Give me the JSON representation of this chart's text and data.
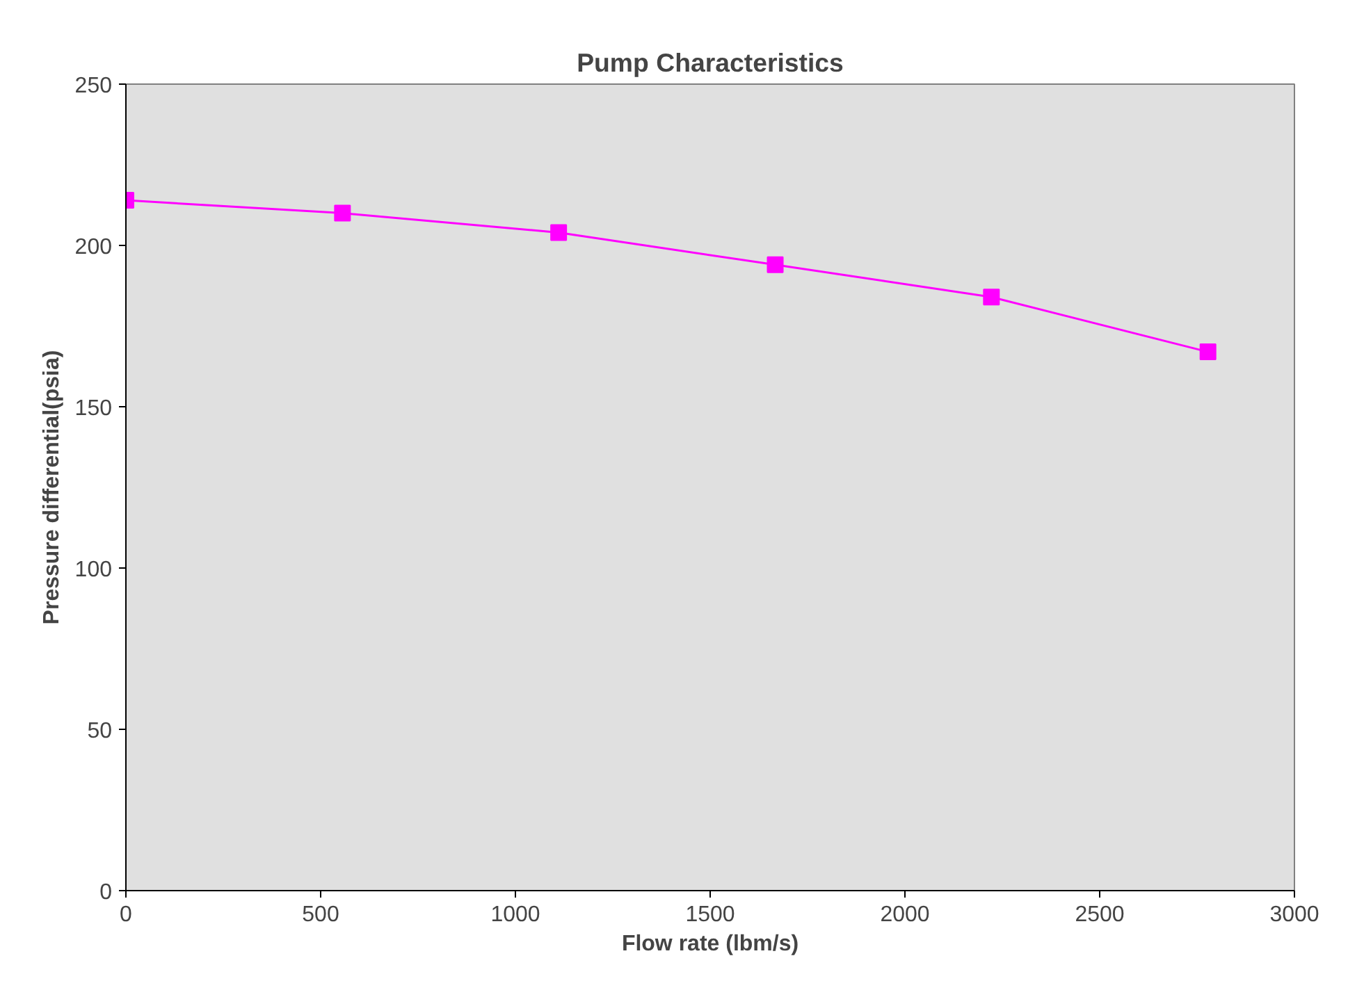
{
  "chart_data": {
    "type": "line",
    "title": "Pump Characteristics",
    "xlabel": "Flow rate (lbm/s)",
    "ylabel": "Pressure differential(psia)",
    "x": [
      0,
      556,
      1111,
      1667,
      2222,
      2778
    ],
    "series": [
      {
        "color": "#ff00ff",
        "values": [
          214,
          210,
          204,
          194,
          184,
          167
        ]
      }
    ],
    "xlim": [
      0,
      3000
    ],
    "ylim": [
      0,
      250
    ],
    "xticks": [
      0,
      500,
      1000,
      1500,
      2000,
      2500,
      3000
    ],
    "yticks": [
      0,
      50,
      100,
      150,
      200,
      250
    ],
    "grid": false,
    "marker": "square",
    "line_style": "solid"
  }
}
